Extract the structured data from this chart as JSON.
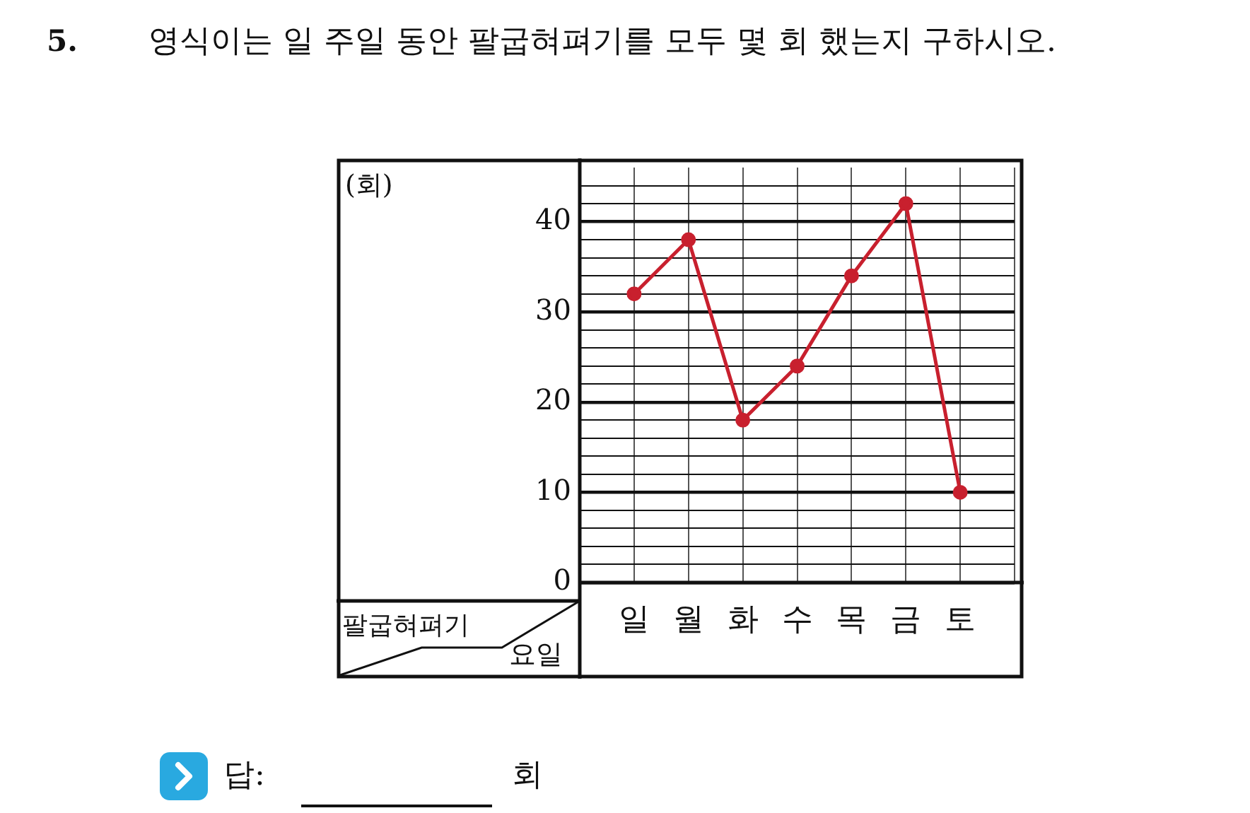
{
  "chart_data": {
    "type": "line",
    "title": "영식이는 일 주일 동안 팔굽혀펴기를 모두 몇 회 했는지 구하시오.",
    "xlabel": "요일",
    "annotations": [
      "5.",
      "팔굽혀펴기",
      "답:",
      "회",
      "(회)"
    ],
    "categories": [
      "일",
      "월",
      "화",
      "수",
      "목",
      "금",
      "토"
    ],
    "series": [
      {
        "color": "#c8202e",
        "values": [
          32,
          38,
          18,
          24,
          34,
          42,
          10
        ]
      }
    ],
    "ylim": [
      0,
      46
    ],
    "yticks": [
      0,
      {
        "value": 2,
        "label": null
      },
      {
        "value": 4,
        "label": null
      },
      {
        "value": 6,
        "label": null
      },
      {
        "value": 8,
        "label": null
      },
      10,
      {
        "value": 12,
        "label": null
      },
      {
        "value": 14,
        "label": null
      },
      {
        "value": 16,
        "label": null
      },
      {
        "value": 18,
        "label": null
      },
      20,
      {
        "value": 22,
        "label": null
      },
      {
        "value": 24,
        "label": null
      },
      {
        "value": 26,
        "label": null
      },
      {
        "value": 28,
        "label": null
      },
      30,
      {
        "value": 32,
        "label": null
      },
      {
        "value": 34,
        "label": null
      },
      {
        "value": 36,
        "label": null
      },
      {
        "value": 38,
        "label": null
      },
      40,
      {
        "value": 42,
        "label": null
      },
      {
        "value": 44,
        "label": null
      }
    ],
    "grid": true,
    "legend": false,
    "marker": "circle",
    "line_style": "solid"
  }
}
